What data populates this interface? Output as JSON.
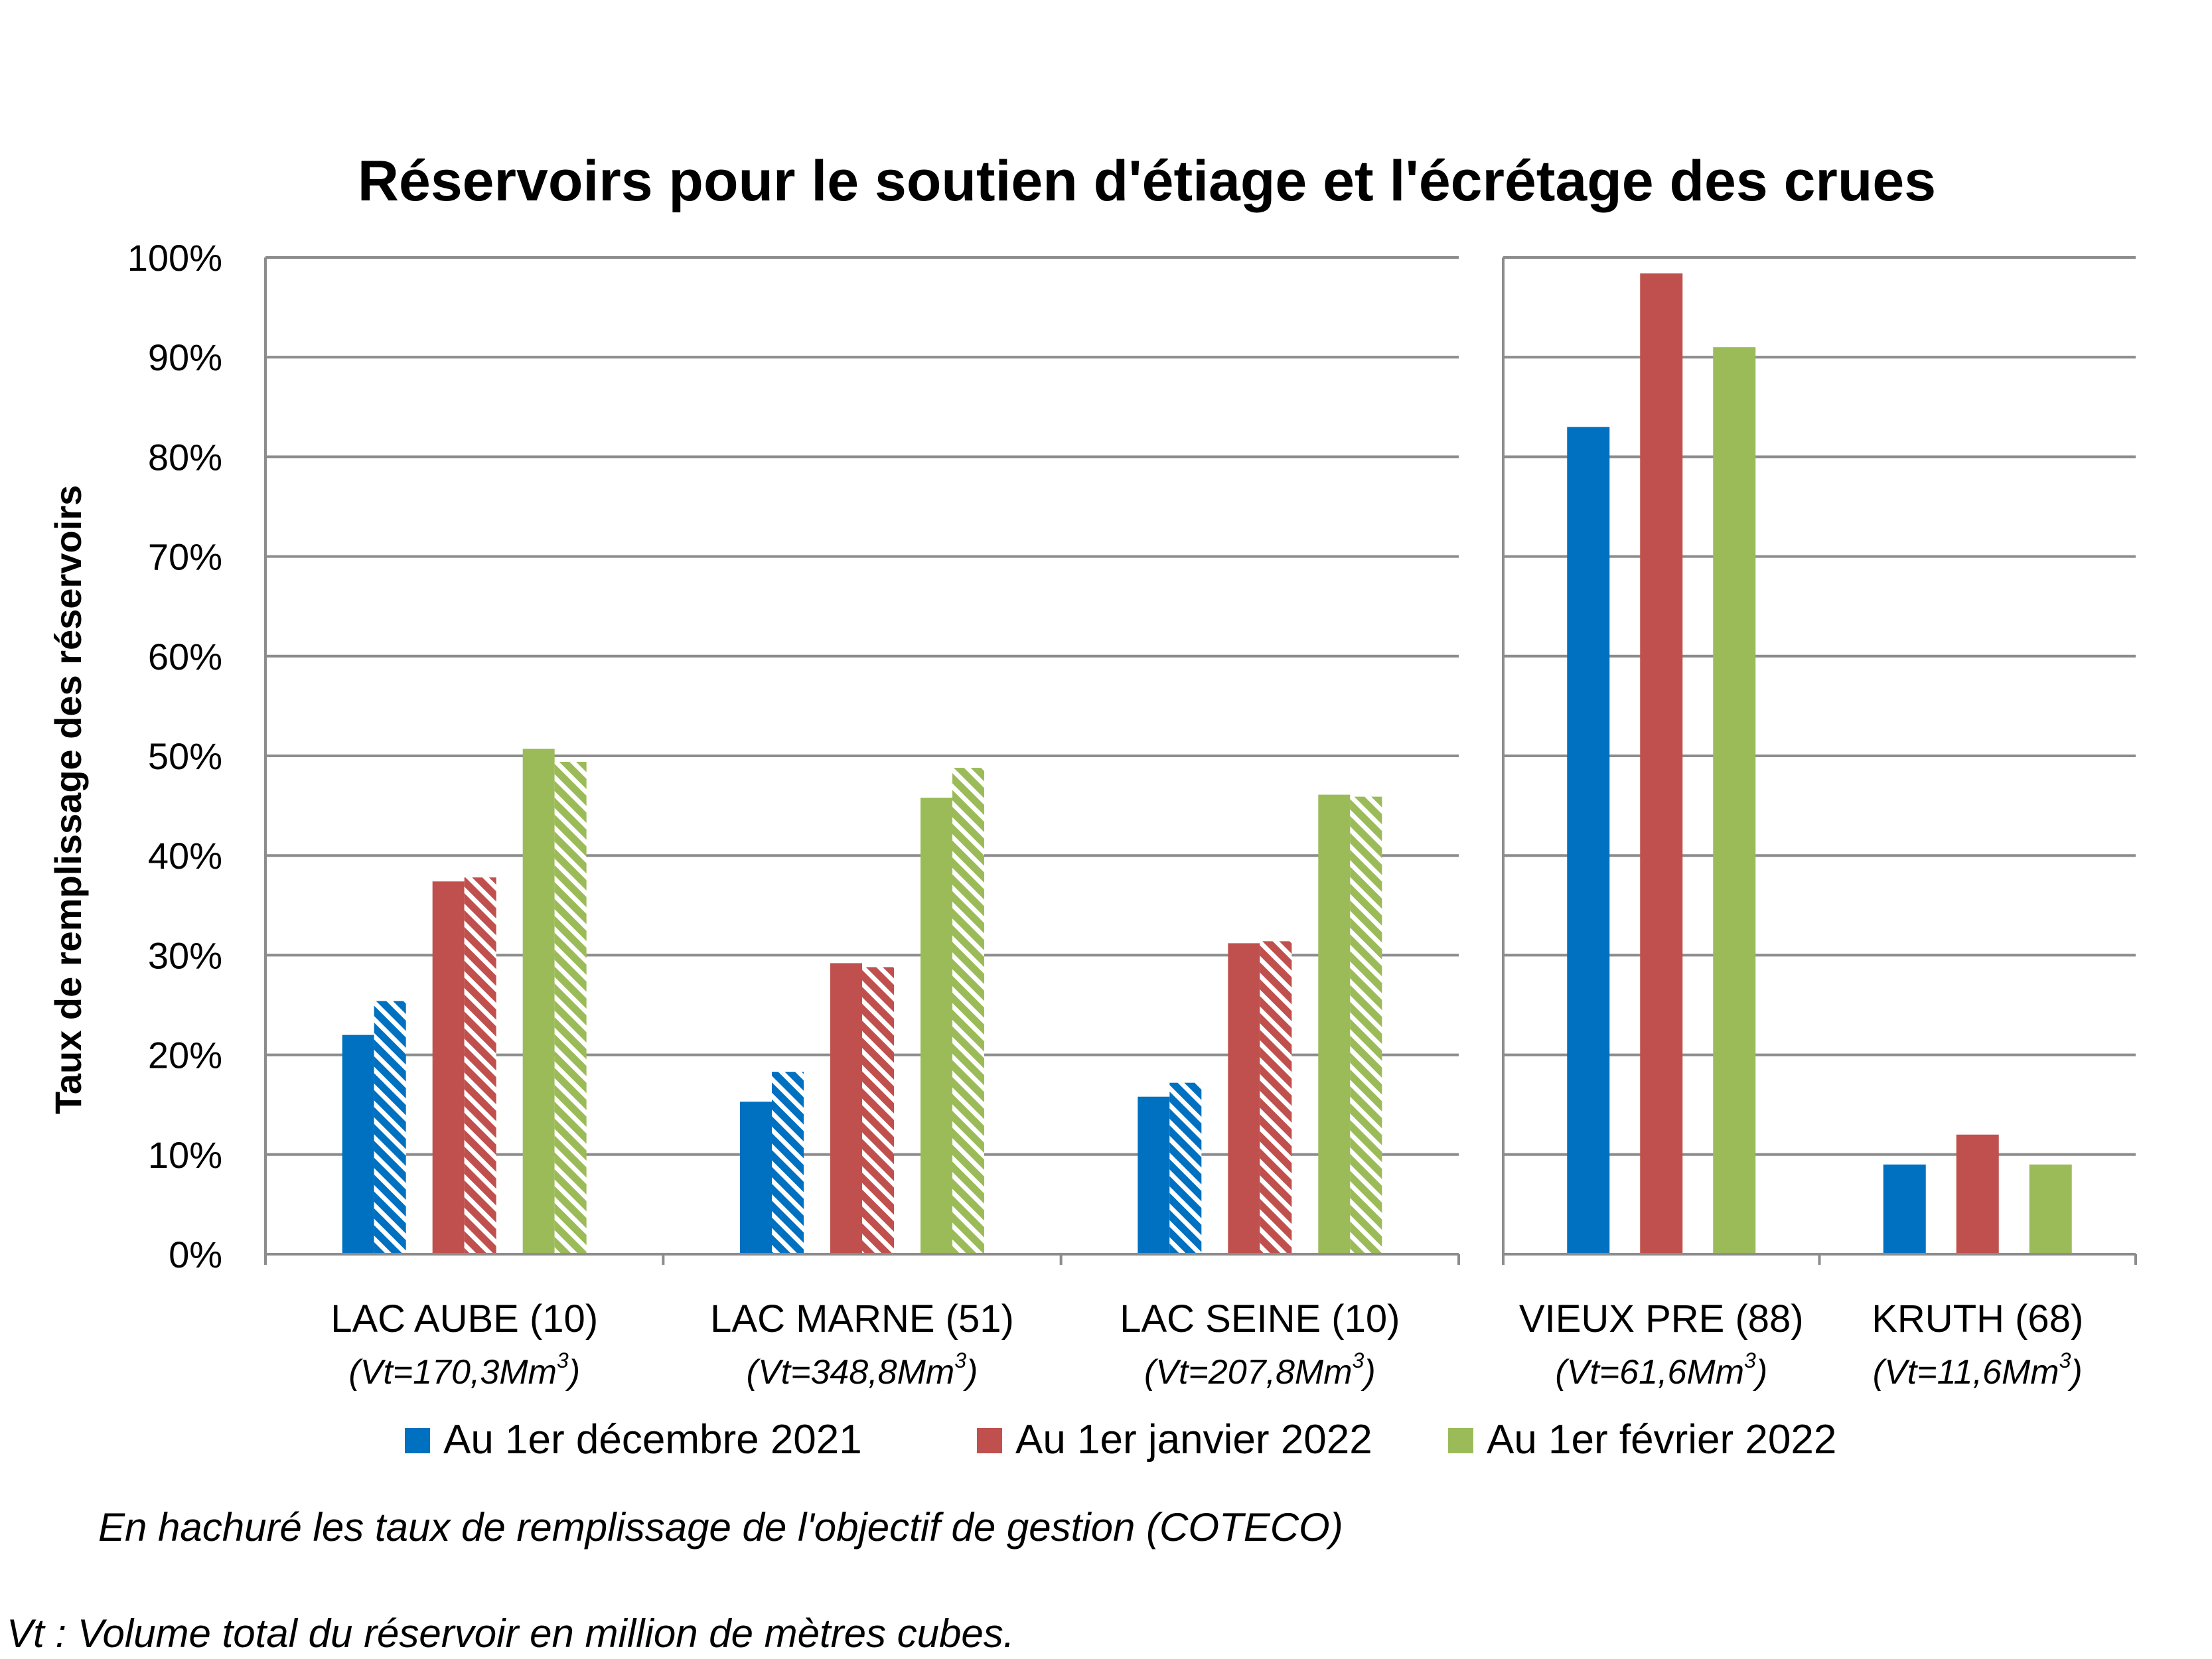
{
  "chart_data": {
    "type": "bar",
    "title": "Réservoirs pour le soutien d'étiage et l'écrétage des crues",
    "ylabel": "Taux de remplissage des réservoirs",
    "ylim": [
      0,
      100
    ],
    "yticks": [
      "0%",
      "10%",
      "20%",
      "30%",
      "40%",
      "50%",
      "60%",
      "70%",
      "80%",
      "90%",
      "100%"
    ],
    "panels": [
      {
        "categories": [
          {
            "name": "LAC AUBE (10)",
            "volume_prefix": "(Vt=170,3Mm",
            "volume_suffix": ")"
          },
          {
            "name": "LAC MARNE (51)",
            "volume_prefix": "(Vt=348,8Mm",
            "volume_suffix": ")"
          },
          {
            "name": "LAC SEINE (10)",
            "volume_prefix": "(Vt=207,8Mm",
            "volume_suffix": ")"
          }
        ],
        "series": [
          {
            "name": "Au 1er décembre 2021",
            "values": [
              22,
              15.3,
              15.8
            ],
            "objective": [
              25.4,
              18.3,
              17.2
            ]
          },
          {
            "name": "Au 1er janvier 2022",
            "values": [
              37.4,
              29.2,
              31.2
            ],
            "objective": [
              37.8,
              28.8,
              31.4
            ]
          },
          {
            "name": "Au 1er février 2022",
            "values": [
              50.7,
              45.8,
              46.1
            ],
            "objective": [
              49.4,
              48.8,
              45.9
            ]
          }
        ]
      },
      {
        "categories": [
          {
            "name": "VIEUX PRE (88)",
            "volume_prefix": "(Vt=61,6Mm",
            "volume_suffix": ")"
          },
          {
            "name": "KRUTH (68)",
            "volume_prefix": "(Vt=11,6Mm",
            "volume_suffix": ")"
          }
        ],
        "series": [
          {
            "name": "Au 1er décembre 2021",
            "values": [
              83,
              9
            ]
          },
          {
            "name": "Au 1er janvier 2022",
            "values": [
              98.4,
              12
            ]
          },
          {
            "name": "Au 1er février 2022",
            "values": [
              91,
              9
            ]
          }
        ]
      }
    ],
    "volume_superscript": "3",
    "legend": [
      {
        "label": "Au 1er décembre 2021",
        "color": "#0070c0"
      },
      {
        "label": "Au 1er janvier 2022",
        "color": "#c0504d"
      },
      {
        "label": "Au 1er février 2022",
        "color": "#9bbb59"
      }
    ],
    "legend_position": "bottom",
    "grid": true,
    "notes": [
      "En hachuré les taux de remplissage de l'objectif de gestion (COTECO)",
      "Vt : Volume total du réservoir en million de mètres cubes."
    ]
  }
}
